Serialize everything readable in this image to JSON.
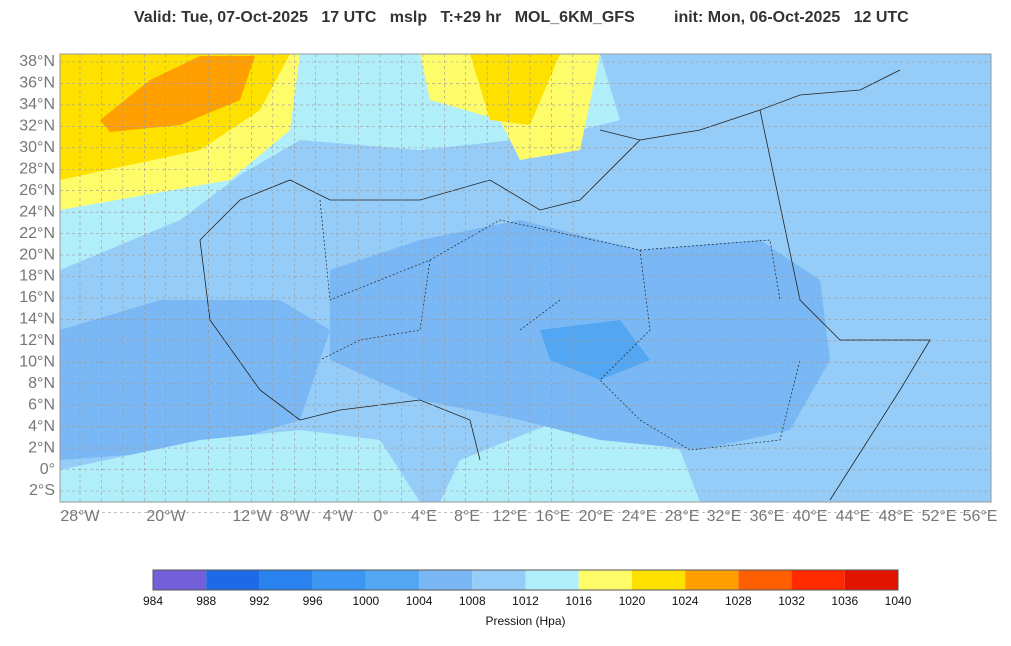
{
  "header": {
    "valid": "Valid: Tue, 07-Oct-2025   17 UTC   mslp   T:+29 hr   MOL_6KM_GFS",
    "init": "init: Mon, 06-Oct-2025   12 UTC"
  },
  "lat_labels": [
    "38°N",
    "36°N",
    "34°N",
    "32°N",
    "30°N",
    "28°N",
    "26°N",
    "24°N",
    "22°N",
    "20°N",
    "18°N",
    "16°N",
    "14°N",
    "12°N",
    "10°N",
    "8°N",
    "6°N",
    "4°N",
    "2°N",
    "0°",
    "2°S"
  ],
  "lon_labels": [
    "28°W",
    "20°W",
    "12°W",
    "8°W",
    "4°W",
    "0°",
    "4°E",
    "8°E",
    "12°E",
    "16°E",
    "20°E",
    "24°E",
    "28°E",
    "32°E",
    "36°E",
    "40°E",
    "44°E",
    "48°E",
    "52°E",
    "56°E"
  ],
  "colorbar": {
    "labels": [
      984,
      988,
      992,
      996,
      1000,
      1004,
      1008,
      1012,
      1016,
      1020,
      1024,
      1028,
      1032,
      1036,
      1040
    ],
    "colors": [
      "#7360d8",
      "#1e6ae6",
      "#2a82ee",
      "#3c96f2",
      "#52a6f2",
      "#7ab8f5",
      "#96cdf8",
      "#b0eefa",
      "#fffc6a",
      "#ffe100",
      "#ffa000",
      "#ff5f00",
      "#ff2a00",
      "#e01400"
    ],
    "title": "Pression (Hpa)"
  }
}
